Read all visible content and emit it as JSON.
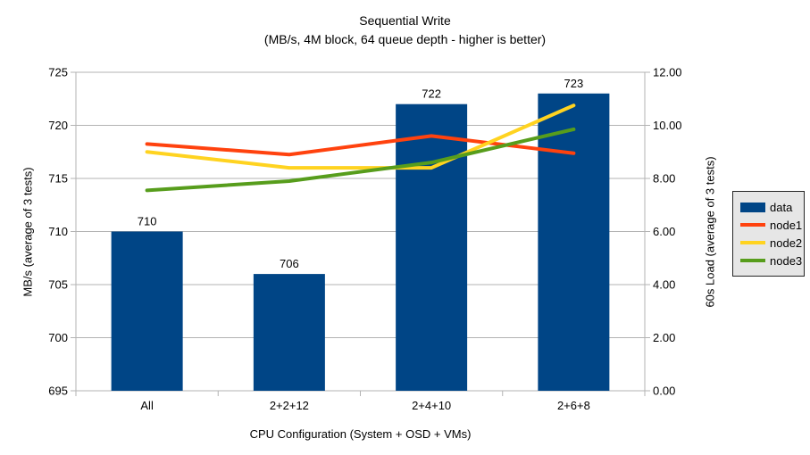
{
  "title": {
    "line1": "Sequential Write",
    "line2": "(MB/s, 4M block, 64 queue depth - higher is better)"
  },
  "chart_data": {
    "type": "bar+line combo",
    "categories": [
      "All",
      "2+2+12",
      "2+4+10",
      "2+6+8"
    ],
    "series": [
      {
        "name": "data",
        "type": "bar",
        "axis": "left",
        "color": "#004586",
        "values": [
          710,
          706,
          722,
          723
        ],
        "labels": [
          "710",
          "706",
          "722",
          "723"
        ]
      },
      {
        "name": "node1",
        "type": "line",
        "axis": "right",
        "color": "#ff420e",
        "values": [
          9.3,
          8.9,
          9.6,
          8.95
        ]
      },
      {
        "name": "node2",
        "type": "line",
        "axis": "right",
        "color": "#ffd320",
        "values": [
          9.0,
          8.4,
          8.4,
          10.75
        ]
      },
      {
        "name": "node3",
        "type": "line",
        "axis": "right",
        "color": "#579d1c",
        "values": [
          7.55,
          7.9,
          8.6,
          9.85
        ]
      }
    ],
    "left_axis": {
      "label": "MB/s (average of 3 tests)",
      "min": 695,
      "max": 725,
      "step": 5,
      "tick_labels": [
        "695",
        "700",
        "705",
        "710",
        "715",
        "720",
        "725"
      ]
    },
    "right_axis": {
      "label": "60s Load (average of 3 tests)",
      "min": 0,
      "max": 12,
      "step": 2,
      "tick_labels": [
        "0.00",
        "2.00",
        "4.00",
        "6.00",
        "8.00",
        "10.00",
        "12.00"
      ]
    },
    "xlabel": "CPU Configuration (System + OSD + VMs)",
    "legend": {
      "position": "right",
      "entries": [
        "data",
        "node1",
        "node2",
        "node3"
      ]
    },
    "grid": true,
    "colors": {
      "grid": "#b3b3b3",
      "axis": "#b3b3b3",
      "text": "#000000",
      "legend_bg": "#e6e6e6",
      "legend_border": "#262626",
      "background": "#ffffff"
    }
  }
}
